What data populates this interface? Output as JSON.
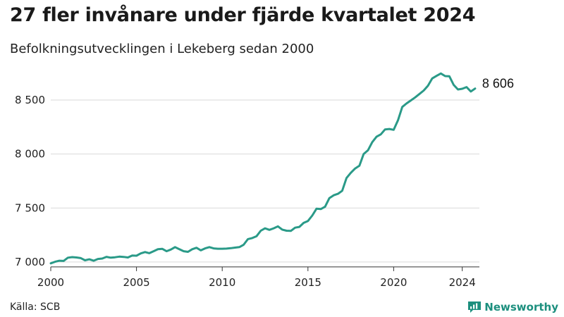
{
  "title": "27 fler invånare under fjärde kvartalet 2024",
  "subtitle": "Befolkningsutvecklingen i Lekeberg sedan 2000",
  "source": "Källa: SCB",
  "brand": "Newsworthy",
  "colors": {
    "line": "#2a9a88",
    "grid": "#d9d9d9",
    "brand": "#1c8f7e"
  },
  "icons": {
    "brand_logo": "bar-chart-icon"
  },
  "chart_data": {
    "type": "line",
    "title": "27 fler invånare under fjärde kvartalet 2024",
    "subtitle": "Befolkningsutvecklingen i Lekeberg sedan 2000",
    "xlabel": "",
    "ylabel": "",
    "xlim": [
      2000,
      2025
    ],
    "ylim": [
      6980,
      8800
    ],
    "grid": true,
    "xticks": [
      2000,
      2005,
      2010,
      2015,
      2020,
      2024
    ],
    "x_tick_labels": [
      "2000",
      "2005",
      "2010",
      "2015",
      "2020",
      "2024"
    ],
    "yticks": [
      7000,
      7500,
      8000,
      8500
    ],
    "y_tick_labels": [
      "7 000",
      "7 500",
      "8 000",
      "8 500"
    ],
    "end_label": "8 606",
    "series": [
      {
        "x": [
          2000.0,
          2000.25,
          2000.5,
          2000.75,
          2001.0,
          2001.25,
          2001.5,
          2001.75,
          2002.0,
          2002.25,
          2002.5,
          2002.75,
          2003.0,
          2003.25,
          2003.5,
          2003.75,
          2004.0,
          2004.25,
          2004.5,
          2004.75,
          2005.0,
          2005.25,
          2005.5,
          2005.75,
          2006.0,
          2006.25,
          2006.5,
          2006.75,
          2007.0,
          2007.25,
          2007.5,
          2007.75,
          2008.0,
          2008.25,
          2008.5,
          2008.75,
          2009.0,
          2009.25,
          2009.5,
          2009.75,
          2010.0,
          2010.25,
          2010.5,
          2010.75,
          2011.0,
          2011.25,
          2011.5,
          2011.75,
          2012.0,
          2012.25,
          2012.5,
          2012.75,
          2013.0,
          2013.25,
          2013.5,
          2013.75,
          2014.0,
          2014.25,
          2014.5,
          2014.75,
          2015.0,
          2015.25,
          2015.5,
          2015.75,
          2016.0,
          2016.25,
          2016.5,
          2016.75,
          2017.0,
          2017.25,
          2017.5,
          2017.75,
          2018.0,
          2018.25,
          2018.5,
          2018.75,
          2019.0,
          2019.25,
          2019.5,
          2019.75,
          2020.0,
          2020.25,
          2020.5,
          2020.75,
          2021.0,
          2021.25,
          2021.5,
          2021.75,
          2022.0,
          2022.25,
          2022.5,
          2022.75,
          2023.0,
          2023.25,
          2023.5,
          2023.75,
          2024.0,
          2024.25,
          2024.5,
          2024.75
        ],
        "values": [
          6988,
          7002,
          7012,
          7010,
          7040,
          7045,
          7042,
          7036,
          7016,
          7025,
          7012,
          7028,
          7032,
          7048,
          7040,
          7044,
          7050,
          7047,
          7042,
          7060,
          7058,
          7080,
          7092,
          7082,
          7100,
          7118,
          7122,
          7100,
          7115,
          7138,
          7118,
          7100,
          7094,
          7118,
          7132,
          7108,
          7126,
          7138,
          7126,
          7123,
          7123,
          7124,
          7128,
          7133,
          7138,
          7160,
          7212,
          7222,
          7238,
          7290,
          7312,
          7298,
          7312,
          7330,
          7300,
          7290,
          7288,
          7318,
          7325,
          7362,
          7380,
          7430,
          7494,
          7490,
          7512,
          7592,
          7618,
          7632,
          7660,
          7778,
          7826,
          7866,
          7892,
          8000,
          8034,
          8110,
          8160,
          8182,
          8228,
          8232,
          8224,
          8312,
          8436,
          8468,
          8496,
          8524,
          8556,
          8588,
          8632,
          8700,
          8724,
          8746,
          8722,
          8720,
          8640,
          8598,
          8604,
          8620,
          8579,
          8606
        ]
      }
    ]
  }
}
